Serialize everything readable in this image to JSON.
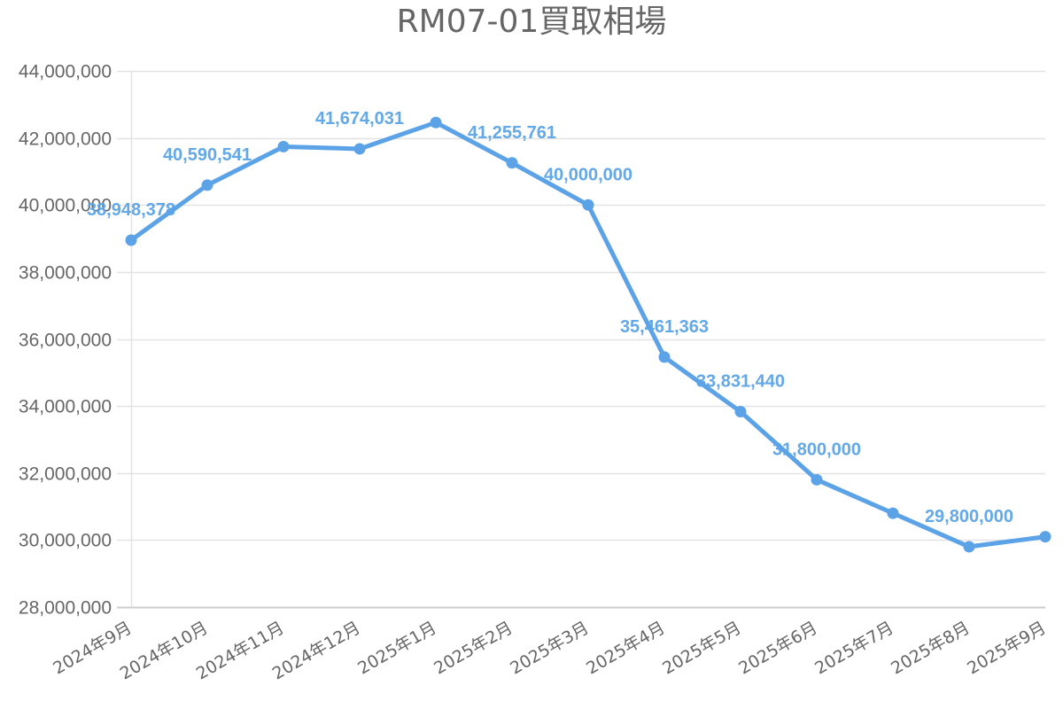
{
  "chart_data": {
    "type": "line",
    "title": "RM07-01買取相場",
    "xlabel": "",
    "ylabel": "",
    "categories": [
      "2024年9月",
      "2024年10月",
      "2024年11月",
      "2024年12月",
      "2025年1月",
      "2025年2月",
      "2025年3月",
      "2025年4月",
      "2025年5月",
      "2025年6月",
      "2025年7月",
      "2025年8月",
      "2025年9月"
    ],
    "series": [
      {
        "name": "買取相場",
        "color": "#5ba3e6",
        "values": [
          38948378,
          40590541,
          41740000,
          41674031,
          42460000,
          41255761,
          40000000,
          35461363,
          33831440,
          31800000,
          30800000,
          29800000,
          30100000
        ],
        "data_labels": [
          "38,948,378",
          "40,590,541",
          "",
          "41,674,031",
          "",
          "41,255,761",
          "40,000,000",
          "35,461,363",
          "33,831,440",
          "31,800,000",
          "",
          "29,800,000",
          ""
        ]
      }
    ],
    "ylim": [
      28000000,
      44000000
    ],
    "yticks": [
      28000000,
      30000000,
      32000000,
      34000000,
      36000000,
      38000000,
      40000000,
      42000000,
      44000000
    ],
    "ytick_labels": [
      "28,000,000",
      "30,000,000",
      "32,000,000",
      "34,000,000",
      "36,000,000",
      "38,000,000",
      "40,000,000",
      "42,000,000",
      "44,000,000"
    ],
    "grid": true,
    "legend": "none"
  },
  "colors": {
    "line": "#5ba3e6",
    "grid": "#e3e3e3",
    "axis": "#cccccc",
    "text": "#666666"
  }
}
